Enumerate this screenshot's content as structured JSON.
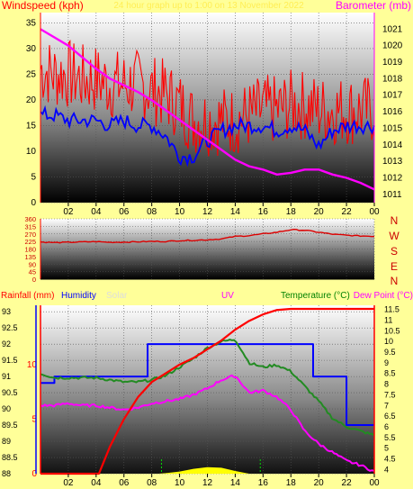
{
  "header": {
    "left_label": "Windspeed (kph)",
    "center_label": "24 hour graph up to 1:00 on 13 November 2022",
    "right_label": "Barometer (mb)"
  },
  "wind_panel": {
    "compass": [
      "N",
      "W",
      "S",
      "E",
      "N"
    ]
  },
  "bottom_panel": {
    "labels": {
      "rainfall": "Rainfall (mm)",
      "humidity": "Humidity",
      "solar": "Solar",
      "uv": "UV",
      "temperature": "Temperature (°C)",
      "dewpoint": "Dew Point (°C)"
    }
  },
  "colors": {
    "windspeed": "#ff0000",
    "avg_wind": "#0000ff",
    "barometer": "#ff00ff",
    "direction": "#dd0000",
    "rainfall": "#ff0000",
    "humidity": "#0000ff",
    "temperature": "#228b22",
    "dewpoint": "#ff00ff",
    "solar": "#ffff00"
  },
  "chart_data": [
    {
      "type": "line",
      "x_ticks": [
        "02",
        "04",
        "06",
        "08",
        "10",
        "12",
        "14",
        "16",
        "18",
        "20",
        "22",
        "00"
      ],
      "y_left": {
        "label": "Windspeed (kph)",
        "range": [
          0,
          37
        ],
        "ticks": [
          0,
          5,
          10,
          15,
          20,
          25,
          30,
          35
        ]
      },
      "y_right": {
        "label": "Barometer (mb)",
        "range": [
          1010.5,
          1022
        ],
        "ticks": [
          1011,
          1012,
          1013,
          1014,
          1015,
          1016,
          1017,
          1018,
          1019,
          1020,
          1021
        ]
      },
      "series": [
        {
          "name": "Windspeed",
          "axis": "left",
          "x": [
            0,
            1,
            2,
            3,
            4,
            5,
            6,
            7,
            8,
            9,
            10,
            11,
            12,
            13,
            14,
            15,
            16,
            17,
            18,
            19,
            20,
            21,
            22,
            23,
            24
          ],
          "y": [
            26,
            25,
            25,
            24,
            24,
            23,
            23,
            23,
            22,
            21,
            19,
            16,
            16,
            16,
            16,
            17,
            18,
            18,
            19,
            19,
            18,
            18,
            18,
            18,
            18
          ]
        },
        {
          "name": "Average wind",
          "axis": "left",
          "x": [
            0,
            1,
            2,
            3,
            4,
            5,
            6,
            7,
            8,
            9,
            10,
            11,
            12,
            13,
            14,
            15,
            16,
            17,
            18,
            19,
            20,
            21,
            22,
            23,
            24
          ],
          "y": [
            17,
            17,
            16,
            16,
            16,
            15,
            16,
            15,
            15,
            13,
            9,
            9,
            12,
            14,
            15,
            15,
            15,
            14,
            15,
            14,
            11,
            14,
            15,
            15,
            15
          ]
        },
        {
          "name": "Barometer",
          "axis": "right",
          "x": [
            0,
            1,
            2,
            3,
            4,
            5,
            6,
            7,
            8,
            9,
            10,
            11,
            12,
            13,
            14,
            15,
            16,
            17,
            18,
            19,
            20,
            21,
            22,
            23,
            24
          ],
          "y": [
            1021,
            1020.5,
            1020,
            1019.3,
            1018.6,
            1018,
            1017.6,
            1017.2,
            1016.7,
            1016.1,
            1015.5,
            1014.9,
            1014.3,
            1013.7,
            1013.1,
            1012.7,
            1012.5,
            1012.2,
            1012.3,
            1012.5,
            1012.5,
            1012.2,
            1012,
            1011.7,
            1011.3
          ]
        }
      ]
    },
    {
      "type": "line",
      "x_ticks": [
        "02",
        "04",
        "06",
        "08",
        "10",
        "12",
        "14",
        "16",
        "18",
        "20",
        "22",
        "00"
      ],
      "y_left": {
        "range": [
          0,
          360
        ],
        "ticks": [
          0,
          45,
          90,
          135,
          180,
          225,
          270,
          315,
          360
        ]
      },
      "series": [
        {
          "name": "Wind direction",
          "x": [
            0,
            1,
            2,
            3,
            4,
            5,
            6,
            7,
            8,
            9,
            10,
            11,
            12,
            13,
            14,
            15,
            16,
            17,
            18,
            19,
            20,
            21,
            22,
            23,
            24
          ],
          "y": [
            222,
            218,
            220,
            222,
            224,
            220,
            221,
            223,
            225,
            225,
            230,
            232,
            235,
            240,
            255,
            260,
            270,
            280,
            295,
            292,
            280,
            268,
            262,
            258,
            256
          ]
        }
      ]
    },
    {
      "type": "line",
      "x_ticks": [
        "02",
        "04",
        "06",
        "08",
        "10",
        "12",
        "14",
        "16",
        "18",
        "20",
        "22",
        "00"
      ],
      "y_left": {
        "label": "Humidity",
        "range": [
          88,
          93.2
        ],
        "ticks": [
          88,
          88.5,
          89,
          89.5,
          90,
          90.5,
          91,
          91.5,
          92,
          92.5,
          93
        ]
      },
      "y_rain": {
        "label": "Rainfall (mm)",
        "ticks": [
          0,
          5,
          10
        ]
      },
      "y_right": {
        "label": "Temperature (°C)",
        "range": [
          3.8,
          11.7
        ],
        "ticks": [
          4,
          4.5,
          5,
          5.5,
          6,
          6.5,
          7,
          7.5,
          8,
          8.5,
          9,
          9.5,
          10,
          10.5,
          11,
          11.5
        ]
      },
      "series": [
        {
          "name": "Rainfall",
          "axis": "rain",
          "x": [
            0,
            4.2,
            5,
            6,
            7,
            8,
            9,
            10,
            11,
            12,
            13,
            14,
            15,
            16,
            17,
            18,
            19,
            20,
            21,
            22,
            23,
            24
          ],
          "y": [
            0,
            0,
            2.5,
            5,
            7,
            8.4,
            9.2,
            10,
            10.6,
            11.4,
            12.2,
            13.2,
            14,
            14.6,
            15,
            15.1,
            15.1,
            15.1,
            15.1,
            15.1,
            15.1,
            15.1
          ]
        },
        {
          "name": "Humidity",
          "axis": "left",
          "x": [
            0,
            0.9,
            1,
            1.4,
            2,
            5,
            7.6,
            7.7,
            8,
            8.5,
            9.5,
            10,
            13,
            16,
            17,
            18,
            18.1,
            19.5,
            19.6,
            20,
            21.9,
            22,
            24
          ],
          "y": [
            90.8,
            90.8,
            91,
            91,
            91,
            91,
            91,
            92,
            92,
            92,
            92,
            92,
            92,
            92,
            92,
            92,
            92,
            92,
            91,
            91,
            91,
            89.5,
            89.5
          ]
        },
        {
          "name": "Temperature",
          "axis": "right",
          "x": [
            0,
            1,
            2,
            3,
            4,
            5,
            6,
            7,
            8,
            9,
            10,
            11,
            12,
            13,
            14,
            15,
            16,
            17,
            18,
            19,
            20,
            21,
            22,
            23,
            24
          ],
          "y": [
            8.5,
            8.3,
            8.3,
            8.3,
            8.3,
            8.2,
            8.1,
            8.1,
            8.2,
            8.4,
            8.8,
            9.2,
            9.7,
            10,
            10.1,
            9,
            8.8,
            8.9,
            8.6,
            7.9,
            7.2,
            6.4,
            6,
            5.8,
            5.6
          ]
        },
        {
          "name": "Dew Point",
          "axis": "right",
          "x": [
            0,
            1,
            2,
            3,
            4,
            5,
            6,
            7,
            8,
            9,
            10,
            11,
            12,
            13,
            14,
            15,
            16,
            17,
            18,
            19,
            20,
            21,
            22,
            23,
            24
          ],
          "y": [
            7,
            7,
            7.1,
            7,
            7,
            6.9,
            6.8,
            6.9,
            7.1,
            7.2,
            7.3,
            7.5,
            7.8,
            8.2,
            8.4,
            7.6,
            7.7,
            7.4,
            6.8,
            5.8,
            5.2,
            4.8,
            4.4,
            4.2,
            3.9
          ]
        },
        {
          "name": "Solar",
          "axis": "none",
          "x": [
            8.5,
            9,
            10,
            11,
            12,
            13,
            14,
            15
          ],
          "y": [
            0,
            0.05,
            0.2,
            0.45,
            0.6,
            0.55,
            0.25,
            0
          ]
        }
      ]
    }
  ]
}
